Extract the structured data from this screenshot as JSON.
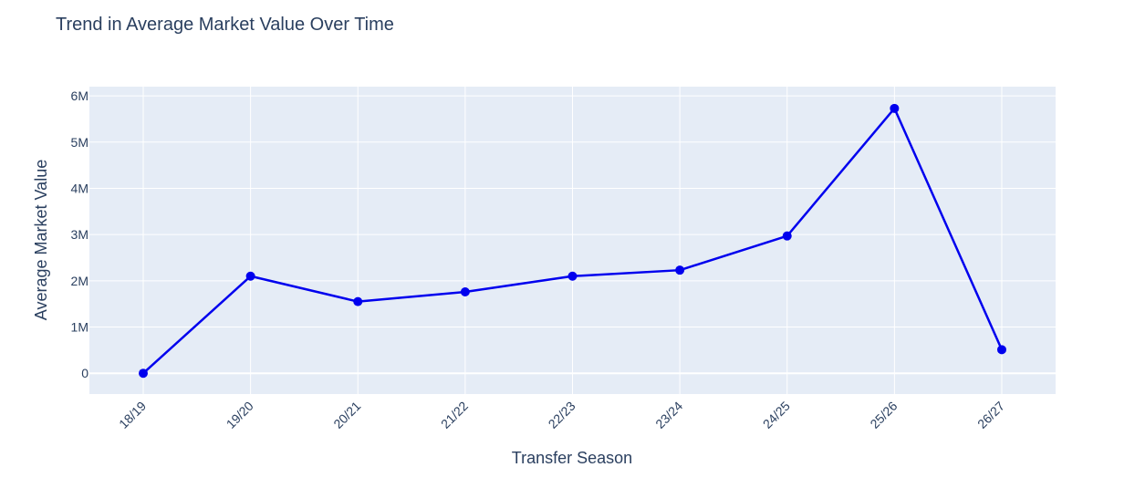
{
  "chart_data": {
    "type": "line",
    "title": "Trend in Average Market Value Over Time",
    "xlabel": "Transfer Season",
    "ylabel": "Average Market Value",
    "categories": [
      "18/19",
      "19/20",
      "20/21",
      "21/22",
      "22/23",
      "23/24",
      "24/25",
      "25/26",
      "26/27"
    ],
    "series": [
      {
        "values": [
          0,
          2100000,
          1550000,
          1760000,
          2100000,
          2230000,
          2970000,
          5730000,
          510000
        ]
      }
    ],
    "ylim": [
      -450000,
      6200000
    ],
    "yticks": [
      0,
      1000000,
      2000000,
      3000000,
      4000000,
      5000000,
      6000000
    ],
    "ytick_labels": [
      "0",
      "1M",
      "2M",
      "3M",
      "4M",
      "5M",
      "6M"
    ],
    "grid": true,
    "colors": {
      "line": "#0000ee",
      "plot_background": "#e5ecf6",
      "grid": "#ffffff",
      "text": "#2a3f5f"
    }
  }
}
